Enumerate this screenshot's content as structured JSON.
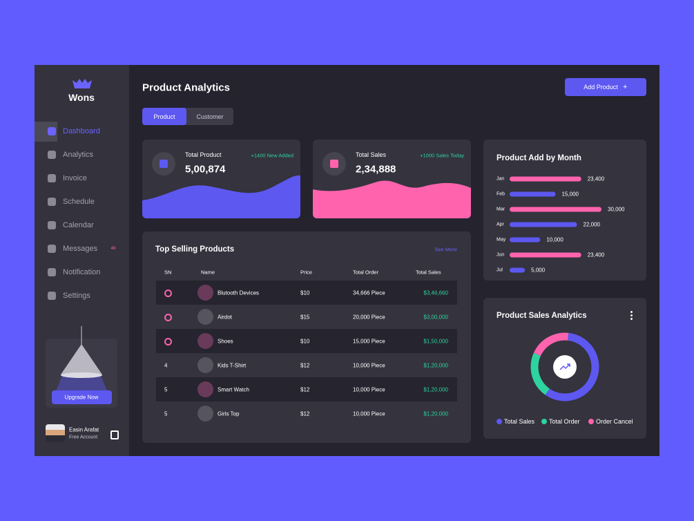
{
  "sidebar": {
    "brand": "Wons",
    "menu": [
      "Dashboard",
      "Analytics",
      "Invoice",
      "Schedule",
      "Calendar",
      "Messages",
      "Notification",
      "Settings"
    ],
    "messages_badge": "49",
    "upgrade": "Upgrade Now",
    "user": {
      "name": "Easin Arafat",
      "plan": "Free Account"
    }
  },
  "header": {
    "title": "Product Analytics",
    "button": "Add Product",
    "tabs": [
      "Product",
      "Customer"
    ]
  },
  "stats": [
    {
      "label": "Total Product",
      "value": "5,00,874",
      "note": "+1400 New Added"
    },
    {
      "label": "Total Sales",
      "value": "2,34,888",
      "note": "+1000 Sales Today"
    }
  ],
  "table": {
    "title": "Top Selling Products",
    "link": "See More",
    "columns": [
      "SN",
      "Name",
      "Price",
      "Total Order",
      "Total Sales"
    ],
    "rows": [
      {
        "name": "Blutooth Devices",
        "price": "$10",
        "order": "34,666 Piece",
        "sales": "$3,46,660"
      },
      {
        "name": "Airdot",
        "price": "$15",
        "order": "20,000 Piece",
        "sales": "$3,00,000"
      },
      {
        "name": "Shoes",
        "price": "$10",
        "order": "15,000 Piece",
        "sales": "$1,50,000"
      },
      {
        "sn": "4",
        "name": "Kids T-Shirt",
        "price": "$12",
        "order": "10,000 Piece",
        "sales": "$1,20,000"
      },
      {
        "sn": "5",
        "name": "Smart Watch",
        "price": "$12",
        "order": "10,000 Piece",
        "sales": "$1,20,000"
      },
      {
        "sn": "5",
        "name": "Girls Top",
        "price": "$12",
        "order": "10,000 Piece",
        "sales": "$1,20,000"
      }
    ]
  },
  "bar_chart": {
    "type": "bar",
    "title": "Product Add  by Month",
    "categories": [
      "Jan",
      "Feb",
      "Mar",
      "Apr",
      "May",
      "Jun",
      "Jul"
    ],
    "values": [
      23400,
      15000,
      30000,
      22000,
      10000,
      23400,
      5000
    ],
    "value_labels": [
      "23,400",
      "15,000",
      "30,000",
      "22,000",
      "10,000",
      "23,400",
      "5,000"
    ],
    "colors": [
      "#ff63ad",
      "#5d58f0",
      "#ff63ad",
      "#5d58f0",
      "#5d58f0",
      "#ff63ad",
      "#5d58f0"
    ]
  },
  "donut": {
    "type": "pie",
    "title": "Product Sales Analytics",
    "series": [
      {
        "name": "Total Sales",
        "color": "#5d58f0",
        "value": 58
      },
      {
        "name": "Total Order",
        "color": "#2ed3a0",
        "value": 22
      },
      {
        "name": "Order Cancel",
        "color": "#ff63ad",
        "value": 20
      }
    ]
  }
}
